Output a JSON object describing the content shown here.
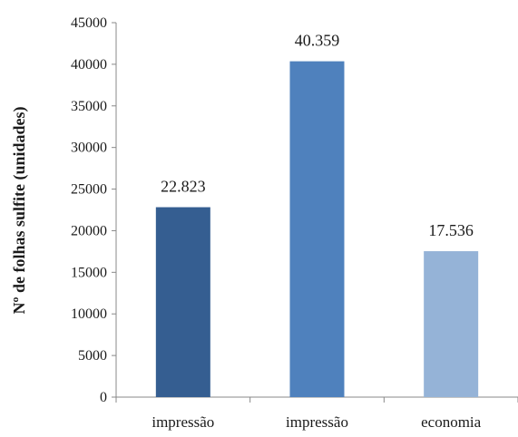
{
  "chart_data": {
    "type": "bar",
    "title": "",
    "xlabel": "",
    "ylabel": "Nº de folhas sulfite (unidades)",
    "ylim": [
      0,
      45000
    ],
    "yticks": [
      0,
      5000,
      10000,
      15000,
      20000,
      25000,
      30000,
      35000,
      40000,
      45000
    ],
    "categories": [
      "impressão",
      "impressão",
      "economia"
    ],
    "values": [
      22823,
      40359,
      17536
    ],
    "data_labels": [
      "22.823",
      "40.359",
      "17.536"
    ],
    "colors": [
      "#355E91",
      "#4F81BD",
      "#95B3D7"
    ],
    "grid": false,
    "legend": "none"
  }
}
